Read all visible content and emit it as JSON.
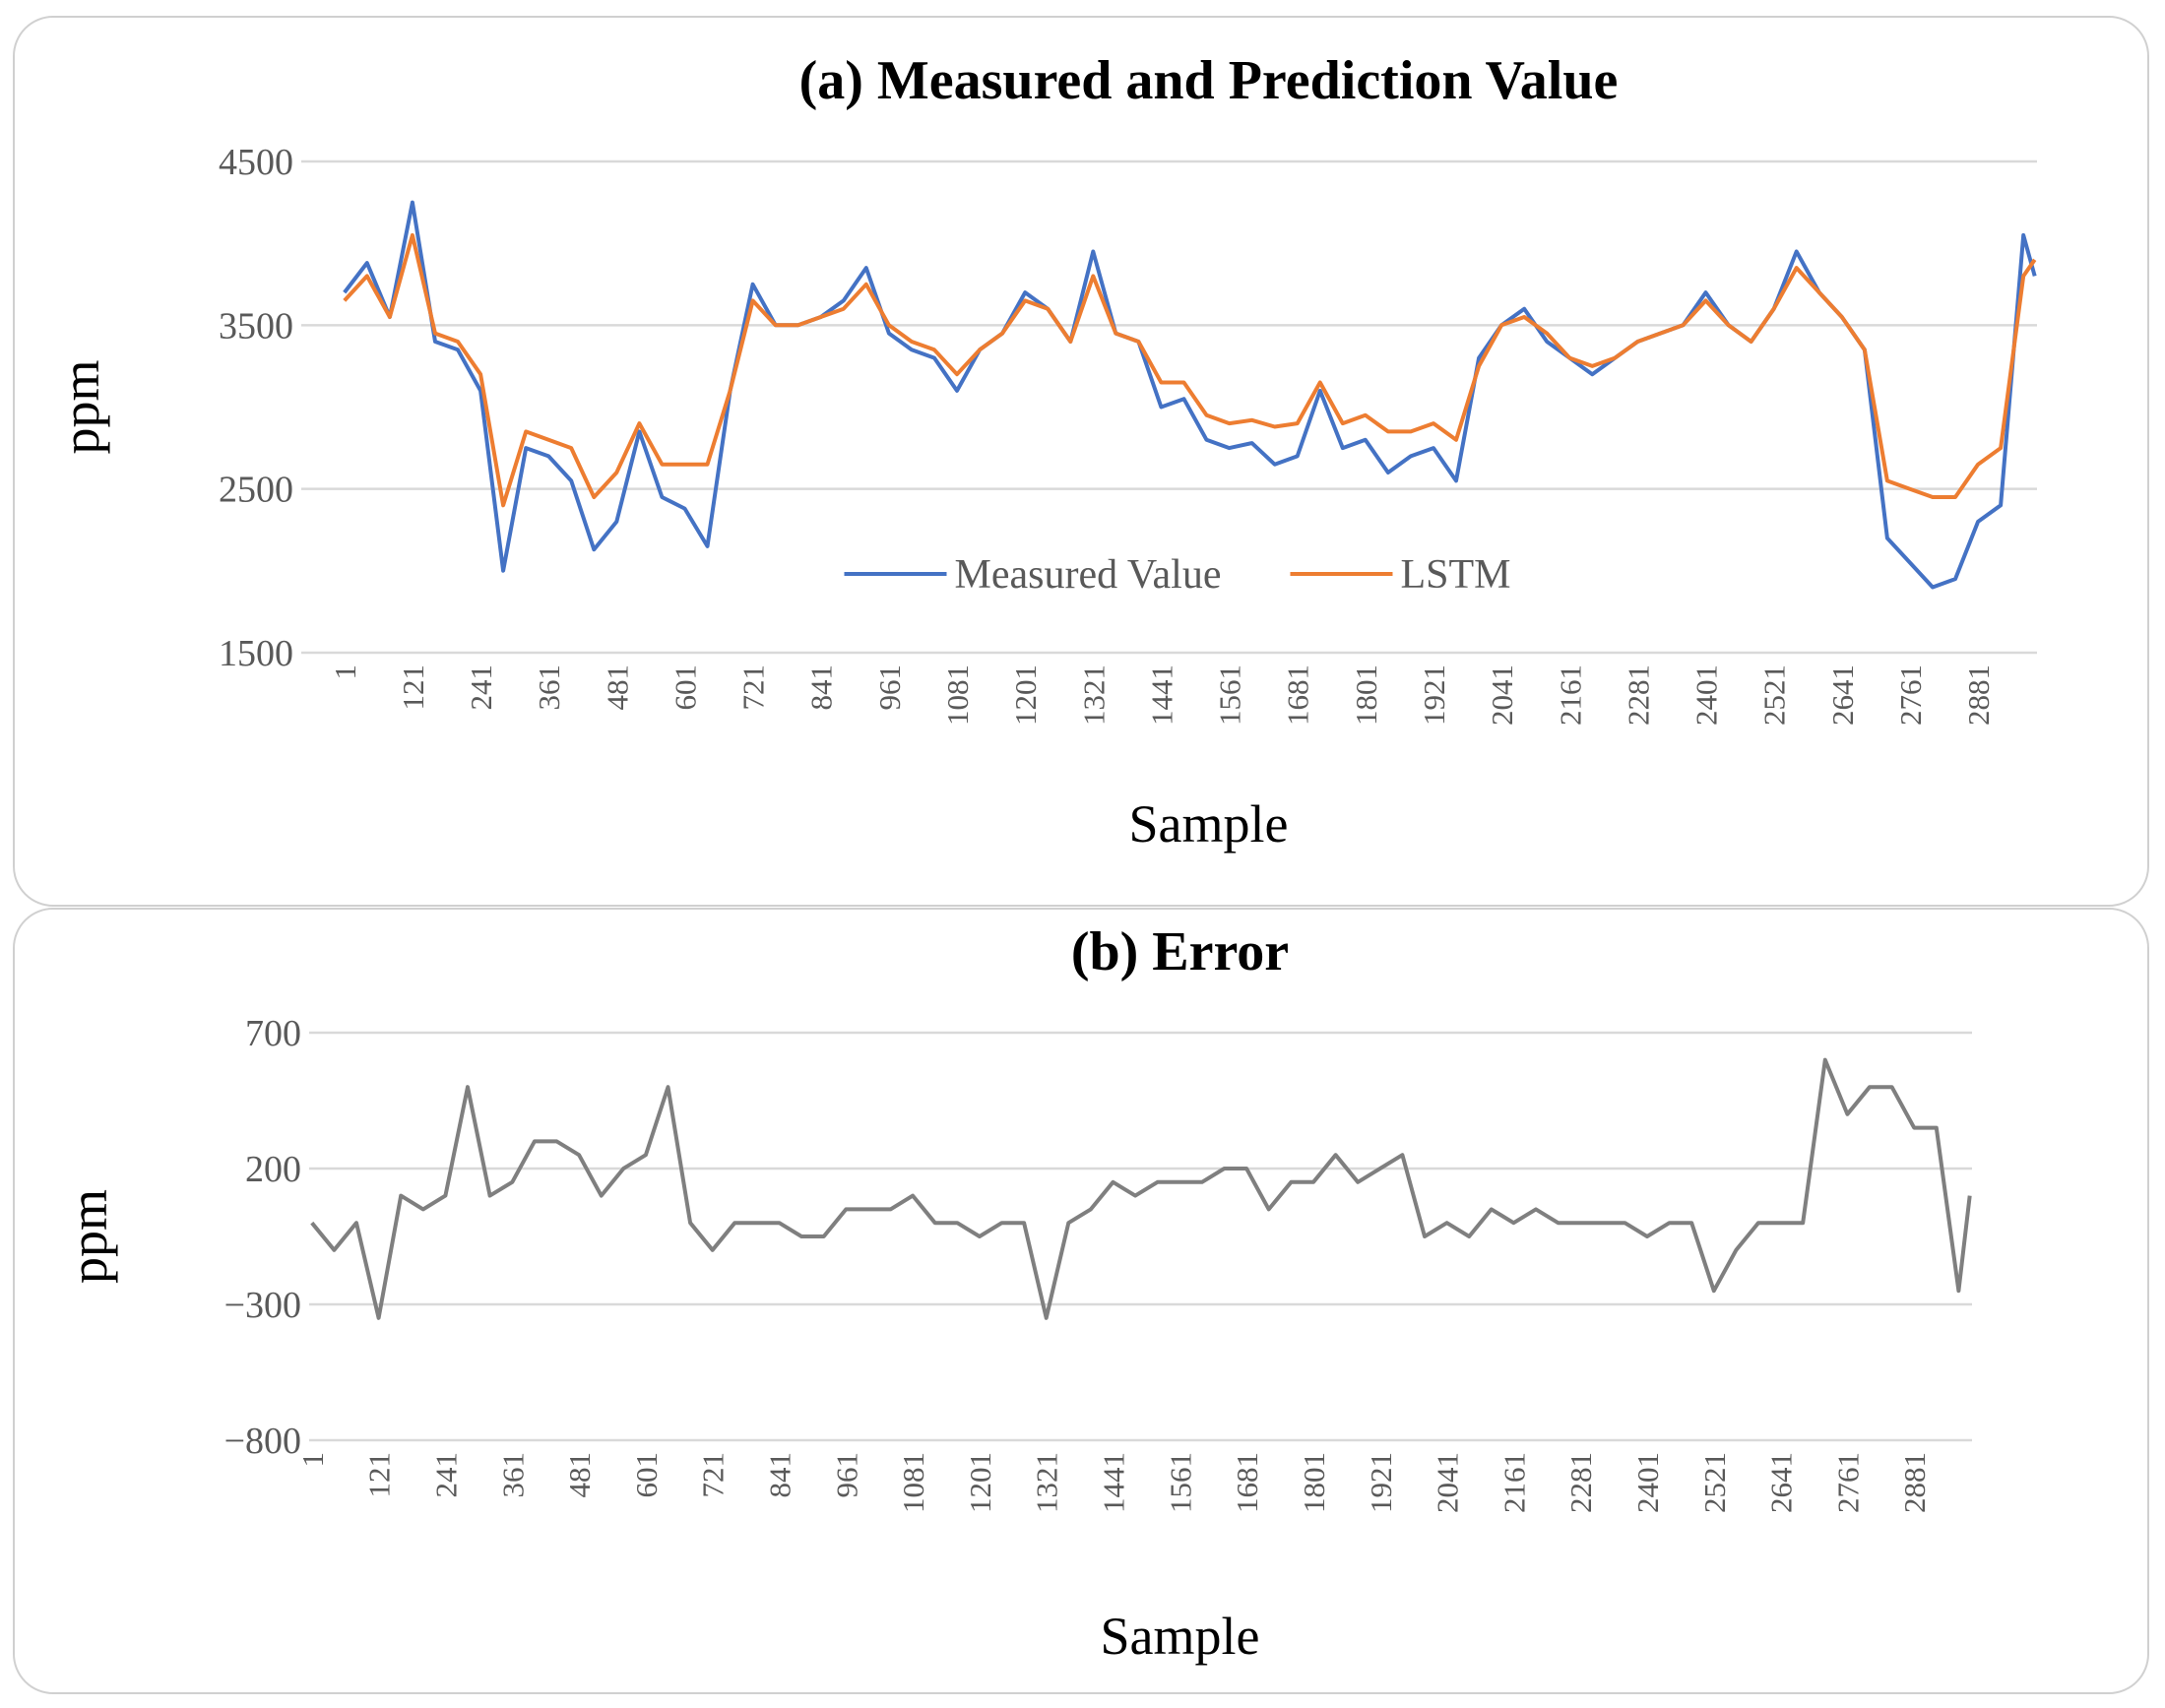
{
  "chart_data": [
    {
      "type": "line",
      "title": "(a) Measured and Prediction  Value",
      "x_label": "Sample",
      "y_label": "ppm",
      "x": [
        1,
        41,
        81,
        121,
        161,
        201,
        241,
        281,
        321,
        361,
        401,
        441,
        481,
        521,
        561,
        601,
        641,
        681,
        721,
        761,
        801,
        841,
        881,
        921,
        961,
        1001,
        1041,
        1081,
        1121,
        1161,
        1201,
        1241,
        1281,
        1321,
        1361,
        1401,
        1441,
        1481,
        1521,
        1561,
        1601,
        1641,
        1681,
        1721,
        1761,
        1801,
        1841,
        1881,
        1921,
        1961,
        2001,
        2041,
        2081,
        2121,
        2161,
        2201,
        2241,
        2281,
        2321,
        2361,
        2401,
        2441,
        2481,
        2521,
        2561,
        2601,
        2641,
        2681,
        2721,
        2761,
        2801,
        2841,
        2881,
        2921,
        2961,
        2981
      ],
      "series": [
        {
          "name": "Measured Value",
          "color": "#4472c4",
          "values": [
            3700,
            3880,
            3550,
            4250,
            3400,
            3350,
            3100,
            2000,
            2750,
            2700,
            2550,
            2130,
            2300,
            2850,
            2450,
            2380,
            2150,
            3100,
            3750,
            3500,
            3500,
            3550,
            3650,
            3850,
            3450,
            3350,
            3300,
            3100,
            3350,
            3450,
            3700,
            3600,
            3400,
            3950,
            3450,
            3400,
            3000,
            3050,
            2800,
            2750,
            2780,
            2650,
            2700,
            3100,
            2750,
            2800,
            2600,
            2700,
            2750,
            2550,
            3300,
            3500,
            3600,
            3400,
            3300,
            3200,
            3300,
            3400,
            3450,
            3500,
            3700,
            3500,
            3400,
            3600,
            3950,
            3700,
            3550,
            3350,
            2200,
            2050,
            1900,
            1950,
            2300,
            2400,
            4050,
            3800
          ]
        },
        {
          "name": "LSTM",
          "color": "#ed7d31",
          "values": [
            3650,
            3800,
            3550,
            4050,
            3450,
            3400,
            3200,
            2400,
            2850,
            2800,
            2750,
            2450,
            2600,
            2900,
            2650,
            2650,
            2650,
            3100,
            3650,
            3500,
            3500,
            3550,
            3600,
            3750,
            3500,
            3400,
            3350,
            3200,
            3350,
            3450,
            3650,
            3600,
            3400,
            3800,
            3450,
            3400,
            3150,
            3150,
            2950,
            2900,
            2920,
            2880,
            2900,
            3150,
            2900,
            2950,
            2850,
            2850,
            2900,
            2800,
            3250,
            3500,
            3550,
            3450,
            3300,
            3250,
            3300,
            3400,
            3450,
            3500,
            3650,
            3500,
            3400,
            3600,
            3850,
            3700,
            3550,
            3350,
            2550,
            2500,
            2450,
            2450,
            2650,
            2750,
            3800,
            3900
          ]
        }
      ],
      "xlim": [
        -75,
        2985
      ],
      "xticks": [
        1,
        121,
        241,
        361,
        481,
        601,
        721,
        841,
        961,
        1081,
        1201,
        1321,
        1441,
        1561,
        1681,
        1801,
        1921,
        2041,
        2161,
        2281,
        2401,
        2521,
        2641,
        2761,
        2881
      ],
      "ylim": [
        1500,
        4500
      ],
      "yticks": [
        1500,
        2500,
        3500,
        4500
      ],
      "grid": true,
      "legend": "lower center"
    },
    {
      "type": "line",
      "title": "(b) Error",
      "x_label": "Sample",
      "y_label": "ppm",
      "x": [
        1,
        41,
        81,
        121,
        161,
        201,
        241,
        281,
        321,
        361,
        401,
        441,
        481,
        521,
        561,
        601,
        641,
        681,
        721,
        761,
        801,
        841,
        881,
        921,
        961,
        1001,
        1041,
        1081,
        1121,
        1161,
        1201,
        1241,
        1281,
        1321,
        1361,
        1401,
        1441,
        1481,
        1521,
        1561,
        1601,
        1641,
        1681,
        1721,
        1761,
        1801,
        1841,
        1881,
        1921,
        1961,
        2001,
        2041,
        2081,
        2121,
        2161,
        2201,
        2241,
        2281,
        2321,
        2361,
        2401,
        2441,
        2481,
        2521,
        2561,
        2601,
        2641,
        2681,
        2721,
        2761,
        2801,
        2841,
        2881,
        2921,
        2961,
        2981
      ],
      "series": [
        {
          "color": "#7f7f7f",
          "values": [
            0,
            -100,
            0,
            -350,
            100,
            50,
            100,
            500,
            100,
            150,
            300,
            300,
            250,
            100,
            200,
            250,
            500,
            0,
            -100,
            0,
            0,
            0,
            -50,
            -50,
            50,
            50,
            50,
            100,
            0,
            0,
            -50,
            0,
            0,
            -350,
            0,
            50,
            150,
            100,
            150,
            150,
            150,
            200,
            200,
            50,
            150,
            150,
            250,
            150,
            200,
            250,
            -50,
            0,
            -50,
            50,
            0,
            50,
            0,
            0,
            0,
            0,
            -50,
            0,
            0,
            -250,
            -100,
            0,
            0,
            0,
            600,
            400,
            500,
            500,
            350,
            350,
            -250,
            100
          ]
        }
      ],
      "xlim": [
        -4,
        2985
      ],
      "xticks": [
        1,
        121,
        241,
        361,
        481,
        601,
        721,
        841,
        961,
        1081,
        1201,
        1321,
        1441,
        1561,
        1681,
        1801,
        1921,
        2041,
        2161,
        2281,
        2401,
        2521,
        2641,
        2761,
        2881
      ],
      "ylim": [
        -800,
        700
      ],
      "yticks": [
        {
          "value": -800,
          "label": "−800"
        },
        {
          "value": -300,
          "label": "−300"
        },
        200,
        700
      ],
      "grid": true
    }
  ]
}
